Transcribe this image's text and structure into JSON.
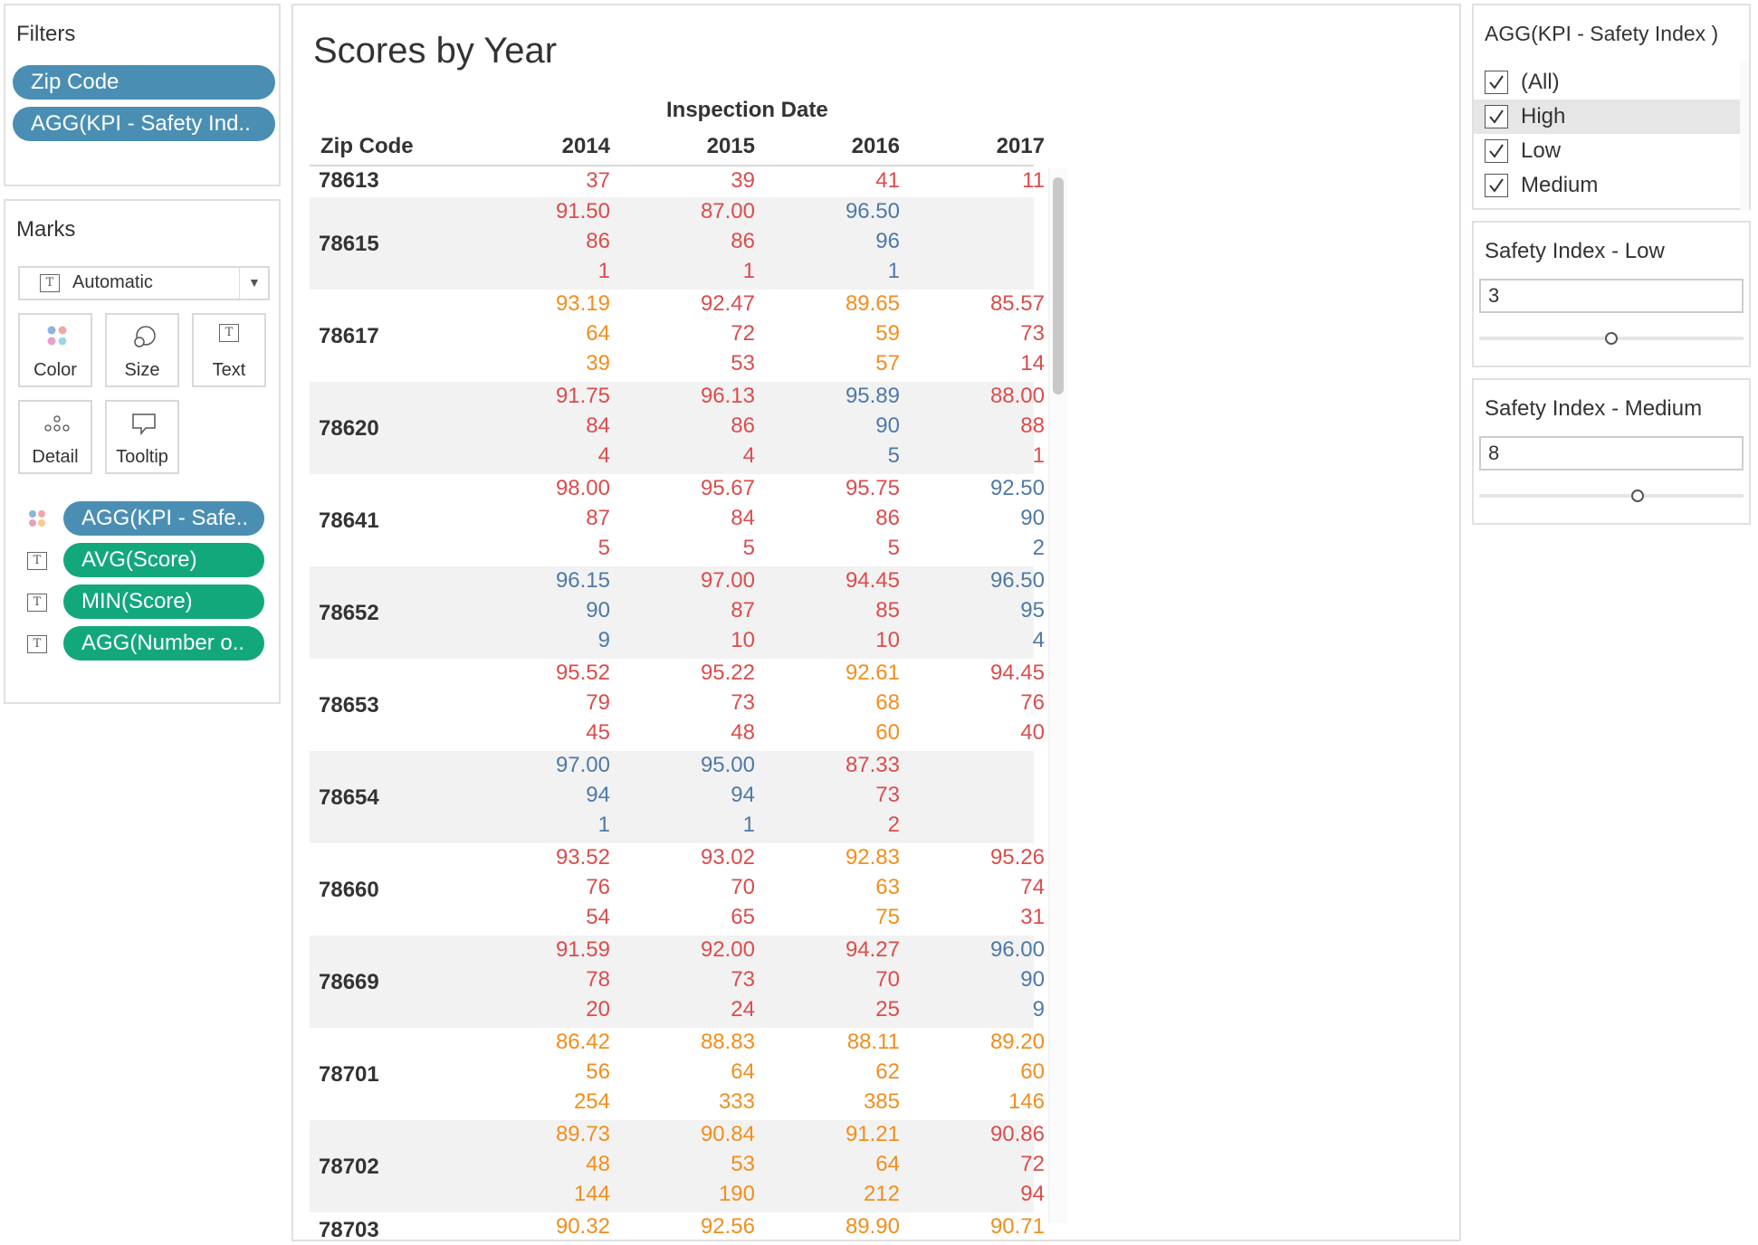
{
  "filters": {
    "title": "Filters",
    "pills": [
      "Zip Code",
      "AGG(KPI - Safety Ind.."
    ]
  },
  "marks": {
    "title": "Marks",
    "mark_type": "Automatic",
    "buttons": [
      "Color",
      "Size",
      "Text",
      "Detail",
      "Tooltip"
    ],
    "fields": [
      "AGG(KPI - Safe..",
      "AVG(Score)",
      "MIN(Score)",
      "AGG(Number o.."
    ]
  },
  "sheet": {
    "title": "Scores by Year",
    "column_group_header": "Inspection Date",
    "row_header": "Zip Code",
    "years": [
      "2014",
      "2015",
      "2016",
      "2017"
    ],
    "first_row": {
      "zip": "78613",
      "cells": [
        {
          "v": "37",
          "c": "red"
        },
        {
          "v": "39",
          "c": "red"
        },
        {
          "v": "41",
          "c": "red"
        },
        {
          "v": "11",
          "c": "red"
        }
      ]
    },
    "rows": [
      {
        "zip": "78615",
        "cells": [
          {
            "v": [
              "91.50",
              "86",
              "1"
            ],
            "c": "red"
          },
          {
            "v": [
              "87.00",
              "86",
              "1"
            ],
            "c": "red"
          },
          {
            "v": [
              "96.50",
              "96",
              "1"
            ],
            "c": "blue"
          },
          {
            "v": [
              "",
              "",
              ""
            ],
            "c": "red"
          }
        ]
      },
      {
        "zip": "78617",
        "cells": [
          {
            "v": [
              "93.19",
              "64",
              "39"
            ],
            "c": "orange"
          },
          {
            "v": [
              "92.47",
              "72",
              "53"
            ],
            "c": "red"
          },
          {
            "v": [
              "89.65",
              "59",
              "57"
            ],
            "c": "orange"
          },
          {
            "v": [
              "85.57",
              "73",
              "14"
            ],
            "c": "red"
          }
        ]
      },
      {
        "zip": "78620",
        "cells": [
          {
            "v": [
              "91.75",
              "84",
              "4"
            ],
            "c": "red"
          },
          {
            "v": [
              "96.13",
              "86",
              "4"
            ],
            "c": "red"
          },
          {
            "v": [
              "95.89",
              "90",
              "5"
            ],
            "c": "blue"
          },
          {
            "v": [
              "88.00",
              "88",
              "1"
            ],
            "c": "red"
          }
        ]
      },
      {
        "zip": "78641",
        "cells": [
          {
            "v": [
              "98.00",
              "87",
              "5"
            ],
            "c": "red"
          },
          {
            "v": [
              "95.67",
              "84",
              "5"
            ],
            "c": "red"
          },
          {
            "v": [
              "95.75",
              "86",
              "5"
            ],
            "c": "red"
          },
          {
            "v": [
              "92.50",
              "90",
              "2"
            ],
            "c": "blue"
          }
        ]
      },
      {
        "zip": "78652",
        "cells": [
          {
            "v": [
              "96.15",
              "90",
              "9"
            ],
            "c": "blue"
          },
          {
            "v": [
              "97.00",
              "87",
              "10"
            ],
            "c": "red"
          },
          {
            "v": [
              "94.45",
              "85",
              "10"
            ],
            "c": "red"
          },
          {
            "v": [
              "96.50",
              "95",
              "4"
            ],
            "c": "blue"
          }
        ]
      },
      {
        "zip": "78653",
        "cells": [
          {
            "v": [
              "95.52",
              "79",
              "45"
            ],
            "c": "red"
          },
          {
            "v": [
              "95.22",
              "73",
              "48"
            ],
            "c": "red"
          },
          {
            "v": [
              "92.61",
              "68",
              "60"
            ],
            "c": "orange"
          },
          {
            "v": [
              "94.45",
              "76",
              "40"
            ],
            "c": "red"
          }
        ]
      },
      {
        "zip": "78654",
        "cells": [
          {
            "v": [
              "97.00",
              "94",
              "1"
            ],
            "c": "blue"
          },
          {
            "v": [
              "95.00",
              "94",
              "1"
            ],
            "c": "blue"
          },
          {
            "v": [
              "87.33",
              "73",
              "2"
            ],
            "c": "red"
          },
          {
            "v": [
              "",
              "",
              ""
            ],
            "c": "red"
          }
        ]
      },
      {
        "zip": "78660",
        "cells": [
          {
            "v": [
              "93.52",
              "76",
              "54"
            ],
            "c": "red"
          },
          {
            "v": [
              "93.02",
              "70",
              "65"
            ],
            "c": "red"
          },
          {
            "v": [
              "92.83",
              "63",
              "75"
            ],
            "c": "orange"
          },
          {
            "v": [
              "95.26",
              "74",
              "31"
            ],
            "c": "red"
          }
        ]
      },
      {
        "zip": "78669",
        "cells": [
          {
            "v": [
              "91.59",
              "78",
              "20"
            ],
            "c": "red"
          },
          {
            "v": [
              "92.00",
              "73",
              "24"
            ],
            "c": "red"
          },
          {
            "v": [
              "94.27",
              "70",
              "25"
            ],
            "c": "red"
          },
          {
            "v": [
              "96.00",
              "90",
              "9"
            ],
            "c": "blue"
          }
        ]
      },
      {
        "zip": "78701",
        "cells": [
          {
            "v": [
              "86.42",
              "56",
              "254"
            ],
            "c": "orange"
          },
          {
            "v": [
              "88.83",
              "64",
              "333"
            ],
            "c": "orange"
          },
          {
            "v": [
              "88.11",
              "62",
              "385"
            ],
            "c": "orange"
          },
          {
            "v": [
              "89.20",
              "60",
              "146"
            ],
            "c": "orange"
          }
        ]
      },
      {
        "zip": "78702",
        "cells": [
          {
            "v": [
              "89.73",
              "48",
              "144"
            ],
            "c": "orange"
          },
          {
            "v": [
              "90.84",
              "53",
              "190"
            ],
            "c": "orange"
          },
          {
            "v": [
              "91.21",
              "64",
              "212"
            ],
            "c": "orange"
          },
          {
            "v": [
              "90.86",
              "72",
              "94"
            ],
            "c": "red"
          }
        ]
      }
    ],
    "partial_row": {
      "zip": "78703",
      "cells": [
        "90.32",
        "92.56",
        "89.90",
        "90.71"
      ]
    }
  },
  "safety_filter": {
    "title": "AGG(KPI - Safety Index )",
    "options": [
      {
        "label": "(All)",
        "checked": true
      },
      {
        "label": "High",
        "checked": true
      },
      {
        "label": "Low",
        "checked": true
      },
      {
        "label": "Medium",
        "checked": true
      }
    ]
  },
  "param_low": {
    "title": "Safety Index - Low",
    "value": "3",
    "slider_fraction": 0.5
  },
  "param_medium": {
    "title": "Safety Index - Medium",
    "value": "8",
    "slider_fraction": 0.6
  },
  "colors": {
    "red": "#dc4c4c",
    "orange": "#f28e1c",
    "blue": "#4e79a7",
    "pill_blue": "#4a8fb3",
    "pill_green": "#12a87c"
  }
}
